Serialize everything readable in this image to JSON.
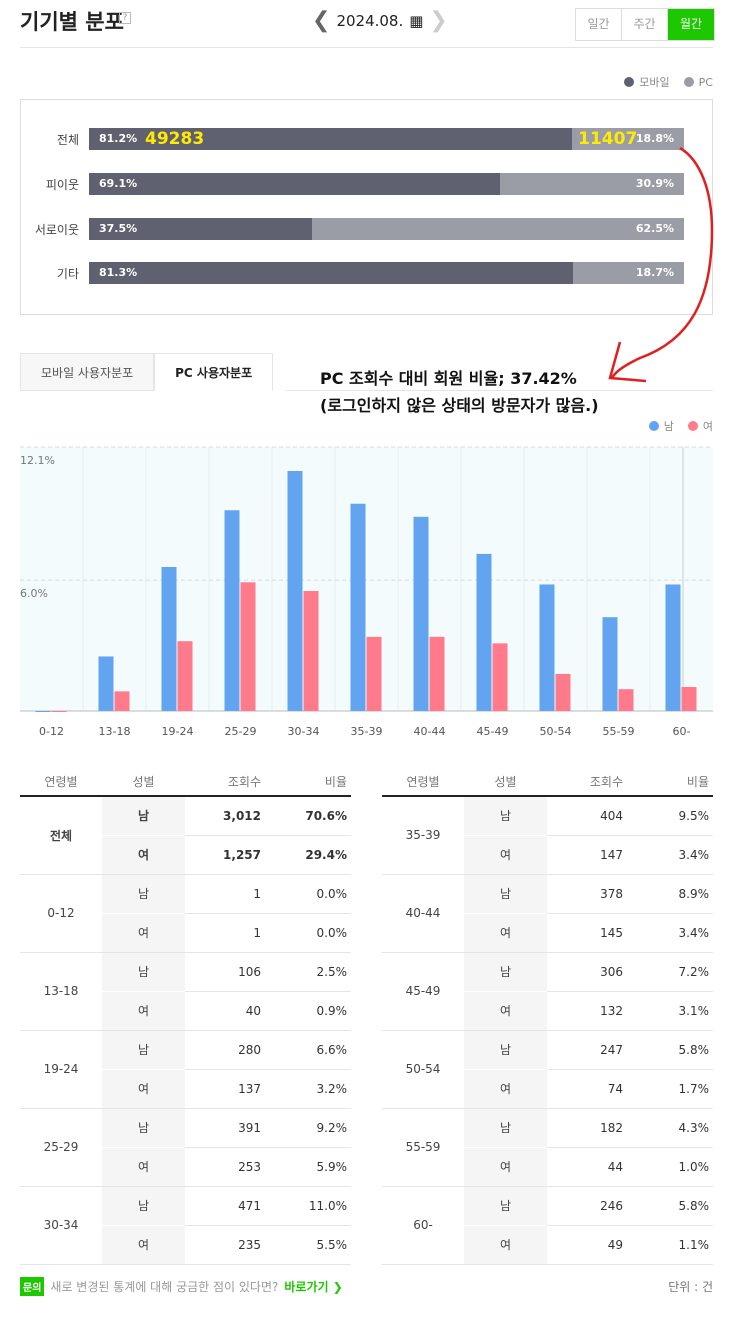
{
  "header": {
    "title": "기기별 분포",
    "help": "?",
    "date": "2024.08.",
    "period_tabs": [
      "일간",
      "주간",
      "월간"
    ],
    "active_period": "월간"
  },
  "device_legend": {
    "mobile": "모바일",
    "pc": "PC"
  },
  "colors": {
    "mobile": "#5f6170",
    "pc": "#9a9ca6",
    "male": "#62a4f0",
    "female": "#ff7a8a",
    "accent": "#1ec800",
    "annotation": "#e02020"
  },
  "device_rows": [
    {
      "label": "전체",
      "mobile": "81.2%",
      "pc": "18.8%",
      "mobile_value": 81.2,
      "mobile_count": "49283",
      "pc_count": "11407"
    },
    {
      "label": "피이웃",
      "mobile": "69.1%",
      "pc": "30.9%",
      "mobile_value": 69.1
    },
    {
      "label": "서로이웃",
      "mobile": "37.5%",
      "pc": "62.5%",
      "mobile_value": 37.5
    },
    {
      "label": "기타",
      "mobile": "81.3%",
      "pc": "18.7%",
      "mobile_value": 81.3
    }
  ],
  "tabs": [
    "모바일 사용자분포",
    "PC 사용자분포"
  ],
  "active_tab": "PC 사용자분포",
  "annotation": {
    "line1": "PC 조회수 대비 회원 비율; 37.42%",
    "line2": "(로그인하지 않은 상태의 방문자가 많음.)"
  },
  "chart_data": {
    "type": "bar",
    "categories": [
      "0-12",
      "13-18",
      "19-24",
      "25-29",
      "30-34",
      "35-39",
      "40-44",
      "45-49",
      "50-54",
      "55-59",
      "60-"
    ],
    "series": [
      {
        "name": "남",
        "values": [
          0.0,
          2.5,
          6.6,
          9.2,
          11.0,
          9.5,
          8.9,
          7.2,
          5.8,
          4.3,
          5.8
        ]
      },
      {
        "name": "여",
        "values": [
          0.0,
          0.9,
          3.2,
          5.9,
          5.5,
          3.4,
          3.4,
          3.1,
          1.7,
          1.0,
          1.1
        ]
      }
    ],
    "yticks": [
      "12.1%",
      "6.0%"
    ],
    "ylim": [
      0,
      12.1
    ],
    "grid": true,
    "legend": "top-right"
  },
  "table": {
    "headers": [
      "연령별",
      "성별",
      "조회수",
      "비율"
    ],
    "left": [
      {
        "age": "전체",
        "bold": true,
        "rows": [
          [
            "남",
            "3,012",
            "70.6%"
          ],
          [
            "여",
            "1,257",
            "29.4%"
          ]
        ]
      },
      {
        "age": "0-12",
        "rows": [
          [
            "남",
            "1",
            "0.0%"
          ],
          [
            "여",
            "1",
            "0.0%"
          ]
        ]
      },
      {
        "age": "13-18",
        "rows": [
          [
            "남",
            "106",
            "2.5%"
          ],
          [
            "여",
            "40",
            "0.9%"
          ]
        ]
      },
      {
        "age": "19-24",
        "rows": [
          [
            "남",
            "280",
            "6.6%"
          ],
          [
            "여",
            "137",
            "3.2%"
          ]
        ]
      },
      {
        "age": "25-29",
        "rows": [
          [
            "남",
            "391",
            "9.2%"
          ],
          [
            "여",
            "253",
            "5.9%"
          ]
        ]
      },
      {
        "age": "30-34",
        "rows": [
          [
            "남",
            "471",
            "11.0%"
          ],
          [
            "여",
            "235",
            "5.5%"
          ]
        ]
      }
    ],
    "right": [
      {
        "age": "35-39",
        "rows": [
          [
            "남",
            "404",
            "9.5%"
          ],
          [
            "여",
            "147",
            "3.4%"
          ]
        ]
      },
      {
        "age": "40-44",
        "rows": [
          [
            "남",
            "378",
            "8.9%"
          ],
          [
            "여",
            "145",
            "3.4%"
          ]
        ]
      },
      {
        "age": "45-49",
        "rows": [
          [
            "남",
            "306",
            "7.2%"
          ],
          [
            "여",
            "132",
            "3.1%"
          ]
        ]
      },
      {
        "age": "50-54",
        "rows": [
          [
            "남",
            "247",
            "5.8%"
          ],
          [
            "여",
            "74",
            "1.7%"
          ]
        ]
      },
      {
        "age": "55-59",
        "rows": [
          [
            "남",
            "182",
            "4.3%"
          ],
          [
            "여",
            "44",
            "1.0%"
          ]
        ]
      },
      {
        "age": "60-",
        "rows": [
          [
            "남",
            "246",
            "5.8%"
          ],
          [
            "여",
            "49",
            "1.1%"
          ]
        ]
      }
    ]
  },
  "footer": {
    "badge": "문의",
    "text": "새로 변경된 통계에 대해 궁금한 점이 있다면?",
    "link": "바로가기 ❯",
    "unit": "단위 : 건"
  }
}
